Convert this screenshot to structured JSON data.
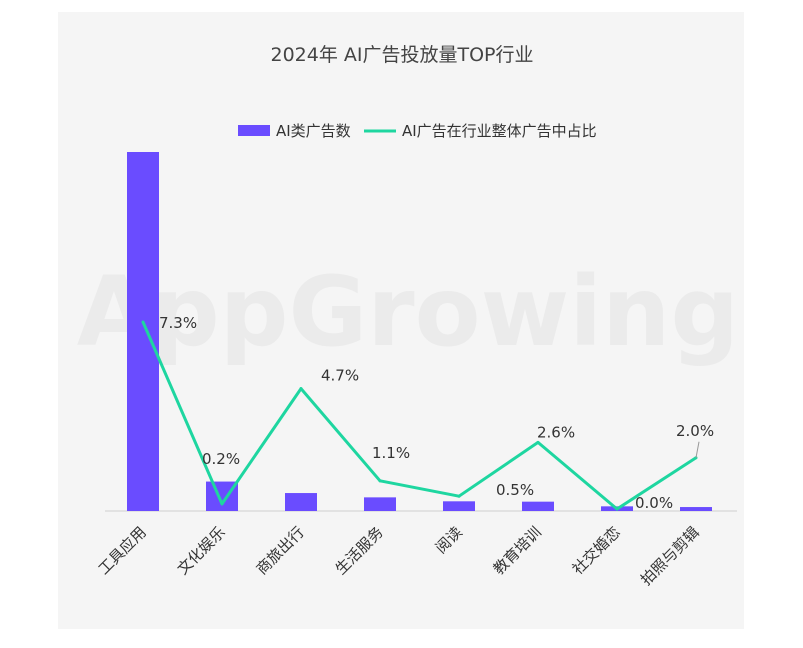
{
  "chart_data": {
    "type": "bar",
    "title": "2024年 AI广告投放量TOP行业",
    "watermark": "AppGrowing",
    "categories": [
      "工具应用",
      "文化娱乐",
      "商旅出行",
      "生活服务",
      "阅读",
      "教育培训",
      "社交婚恋",
      "拍照与剪辑"
    ],
    "series": [
      {
        "name": "AI类广告数",
        "kind": "bar",
        "color": "#6a4cff",
        "values": [
          100,
          8.2,
          5.0,
          3.8,
          2.7,
          2.6,
          1.3,
          1.1
        ]
      },
      {
        "name": "AI广告在行业整体广告中占比",
        "kind": "line",
        "color": "#1ed6a0",
        "values": [
          7.3,
          0.2,
          4.7,
          1.1,
          0.5,
          2.6,
          0.0,
          2.0
        ],
        "labels": [
          "7.3%",
          "0.2%",
          "4.7%",
          "1.1%",
          "0.5%",
          "2.6%",
          "0.0%",
          "2.0%"
        ]
      }
    ],
    "legend_position": "top-right",
    "grid": false
  }
}
